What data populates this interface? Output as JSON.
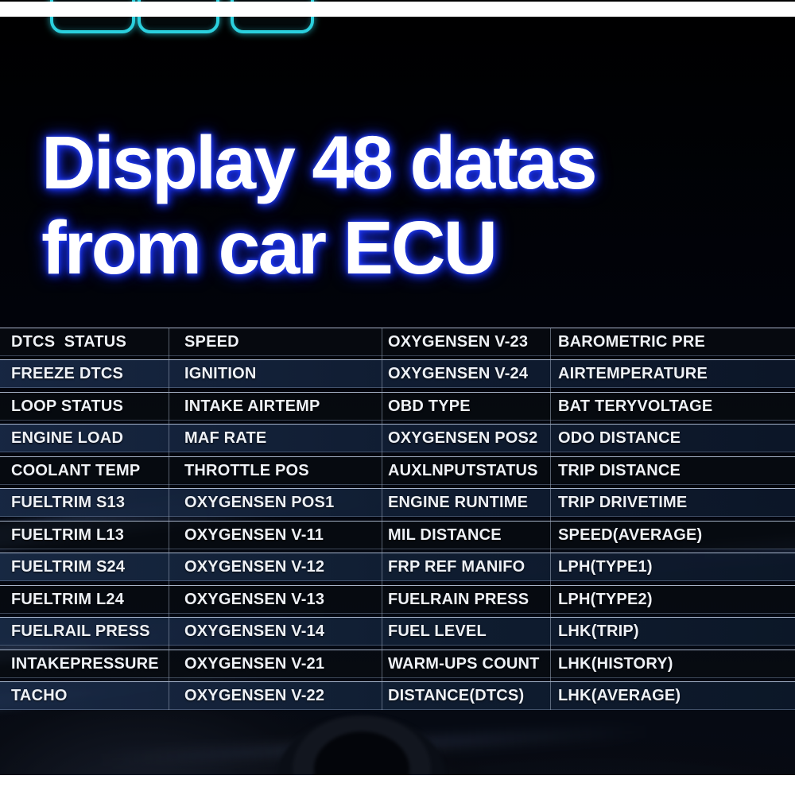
{
  "title": {
    "line1": "Display 48 datas",
    "line2": "from car ECU"
  },
  "top_tabs": [
    {
      "label": ""
    },
    {
      "label": ""
    },
    {
      "label": ""
    }
  ],
  "colors": {
    "accent_teal": "#2bd0de",
    "title_glow_blue": "#1e3cf0",
    "title_text": "#ffffff",
    "row_navy": "#192a46",
    "row_black": "#080b11",
    "table_text": "#eef1f6",
    "band_white": "#ffffff"
  },
  "table": {
    "rows": [
      [
        "DTCS  STATUS",
        "SPEED",
        "OXYGENSEN V-23",
        "BAROMETRIC PRE"
      ],
      [
        "FREEZE DTCS",
        "IGNITION",
        "OXYGENSEN V-24",
        "AIRTEMPERATURE"
      ],
      [
        "LOOP STATUS",
        "INTAKE AIRTEMP",
        "OBD TYPE",
        "BAT TERYVOLTAGE"
      ],
      [
        "ENGINE LOAD",
        "MAF RATE",
        "OXYGENSEN POS2",
        "ODO DISTANCE"
      ],
      [
        "COOLANT TEMP",
        "THROTTLE POS",
        "AUXLNPUTSTATUS",
        "TRIP DISTANCE"
      ],
      [
        "FUELTRIM S13",
        "OXYGENSEN POS1",
        "ENGINE RUNTIME",
        "TRIP DRIVETIME"
      ],
      [
        "FUELTRIM L13",
        "OXYGENSEN V-11",
        "MIL DISTANCE",
        "SPEED(AVERAGE)"
      ],
      [
        "FUELTRIM S24",
        "OXYGENSEN V-12",
        "FRP REF MANIFO",
        "LPH(TYPE1)"
      ],
      [
        "FUELTRIM L24",
        "OXYGENSEN V-13",
        "FUELRAIN PRESS",
        "LPH(TYPE2)"
      ],
      [
        "FUELRAIL PRESS",
        "OXYGENSEN V-14",
        "FUEL LEVEL",
        "LHK(TRIP)"
      ],
      [
        "INTAKEPRESSURE",
        "OXYGENSEN V-21",
        "WARM-UPS COUNT",
        "LHK(HISTORY)"
      ],
      [
        "TACHO",
        "OXYGENSEN V-22",
        "DISTANCE(DTCS)",
        "LHK(AVERAGE)"
      ]
    ]
  }
}
